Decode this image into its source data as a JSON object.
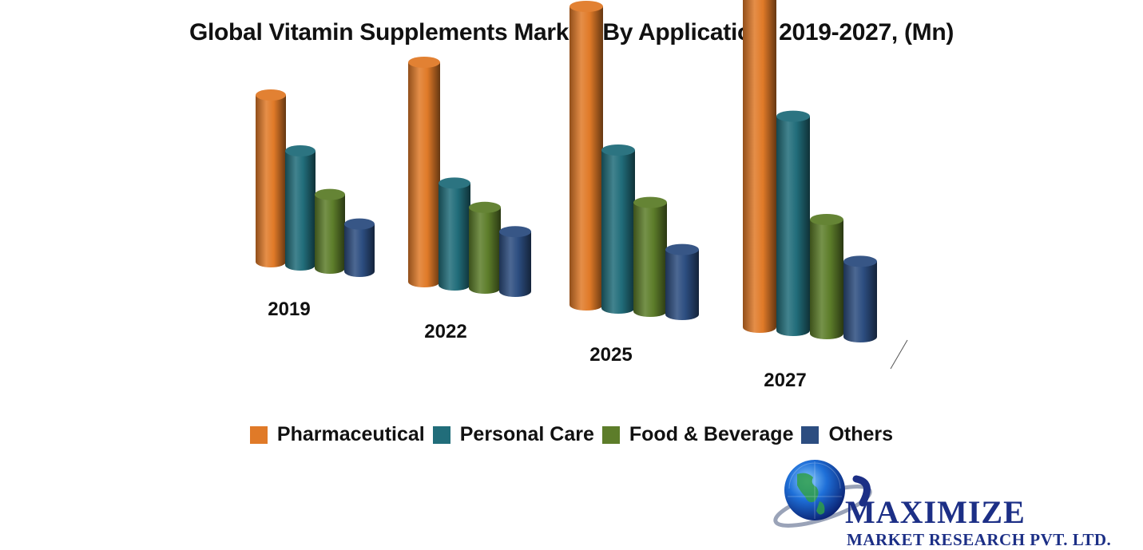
{
  "chart_data": {
    "type": "bar",
    "title": "Global Vitamin Supplements Market, By Application, 2019-2027, (Mn)",
    "categories": [
      "2019",
      "2022",
      "2025",
      "2027"
    ],
    "series": [
      {
        "name": "Pharmaceutical",
        "color": "#e07a28",
        "values": [
          95,
          125,
          170,
          225
        ]
      },
      {
        "name": "Personal Care",
        "color": "#216d7a",
        "values": [
          65,
          58,
          90,
          122
        ]
      },
      {
        "name": "Food & Beverage",
        "color": "#5d7d2a",
        "values": [
          42,
          46,
          62,
          65
        ]
      },
      {
        "name": "Others",
        "color": "#2c4d80",
        "values": [
          27,
          34,
          37,
          43
        ]
      }
    ],
    "xlabel": "",
    "ylabel": "",
    "grid": false,
    "legend_position": "bottom",
    "style": "3d-cylinder"
  },
  "logo": {
    "name": "MAXIMIZE",
    "tagline": "MARKET RESEARCH PVT. LTD."
  }
}
